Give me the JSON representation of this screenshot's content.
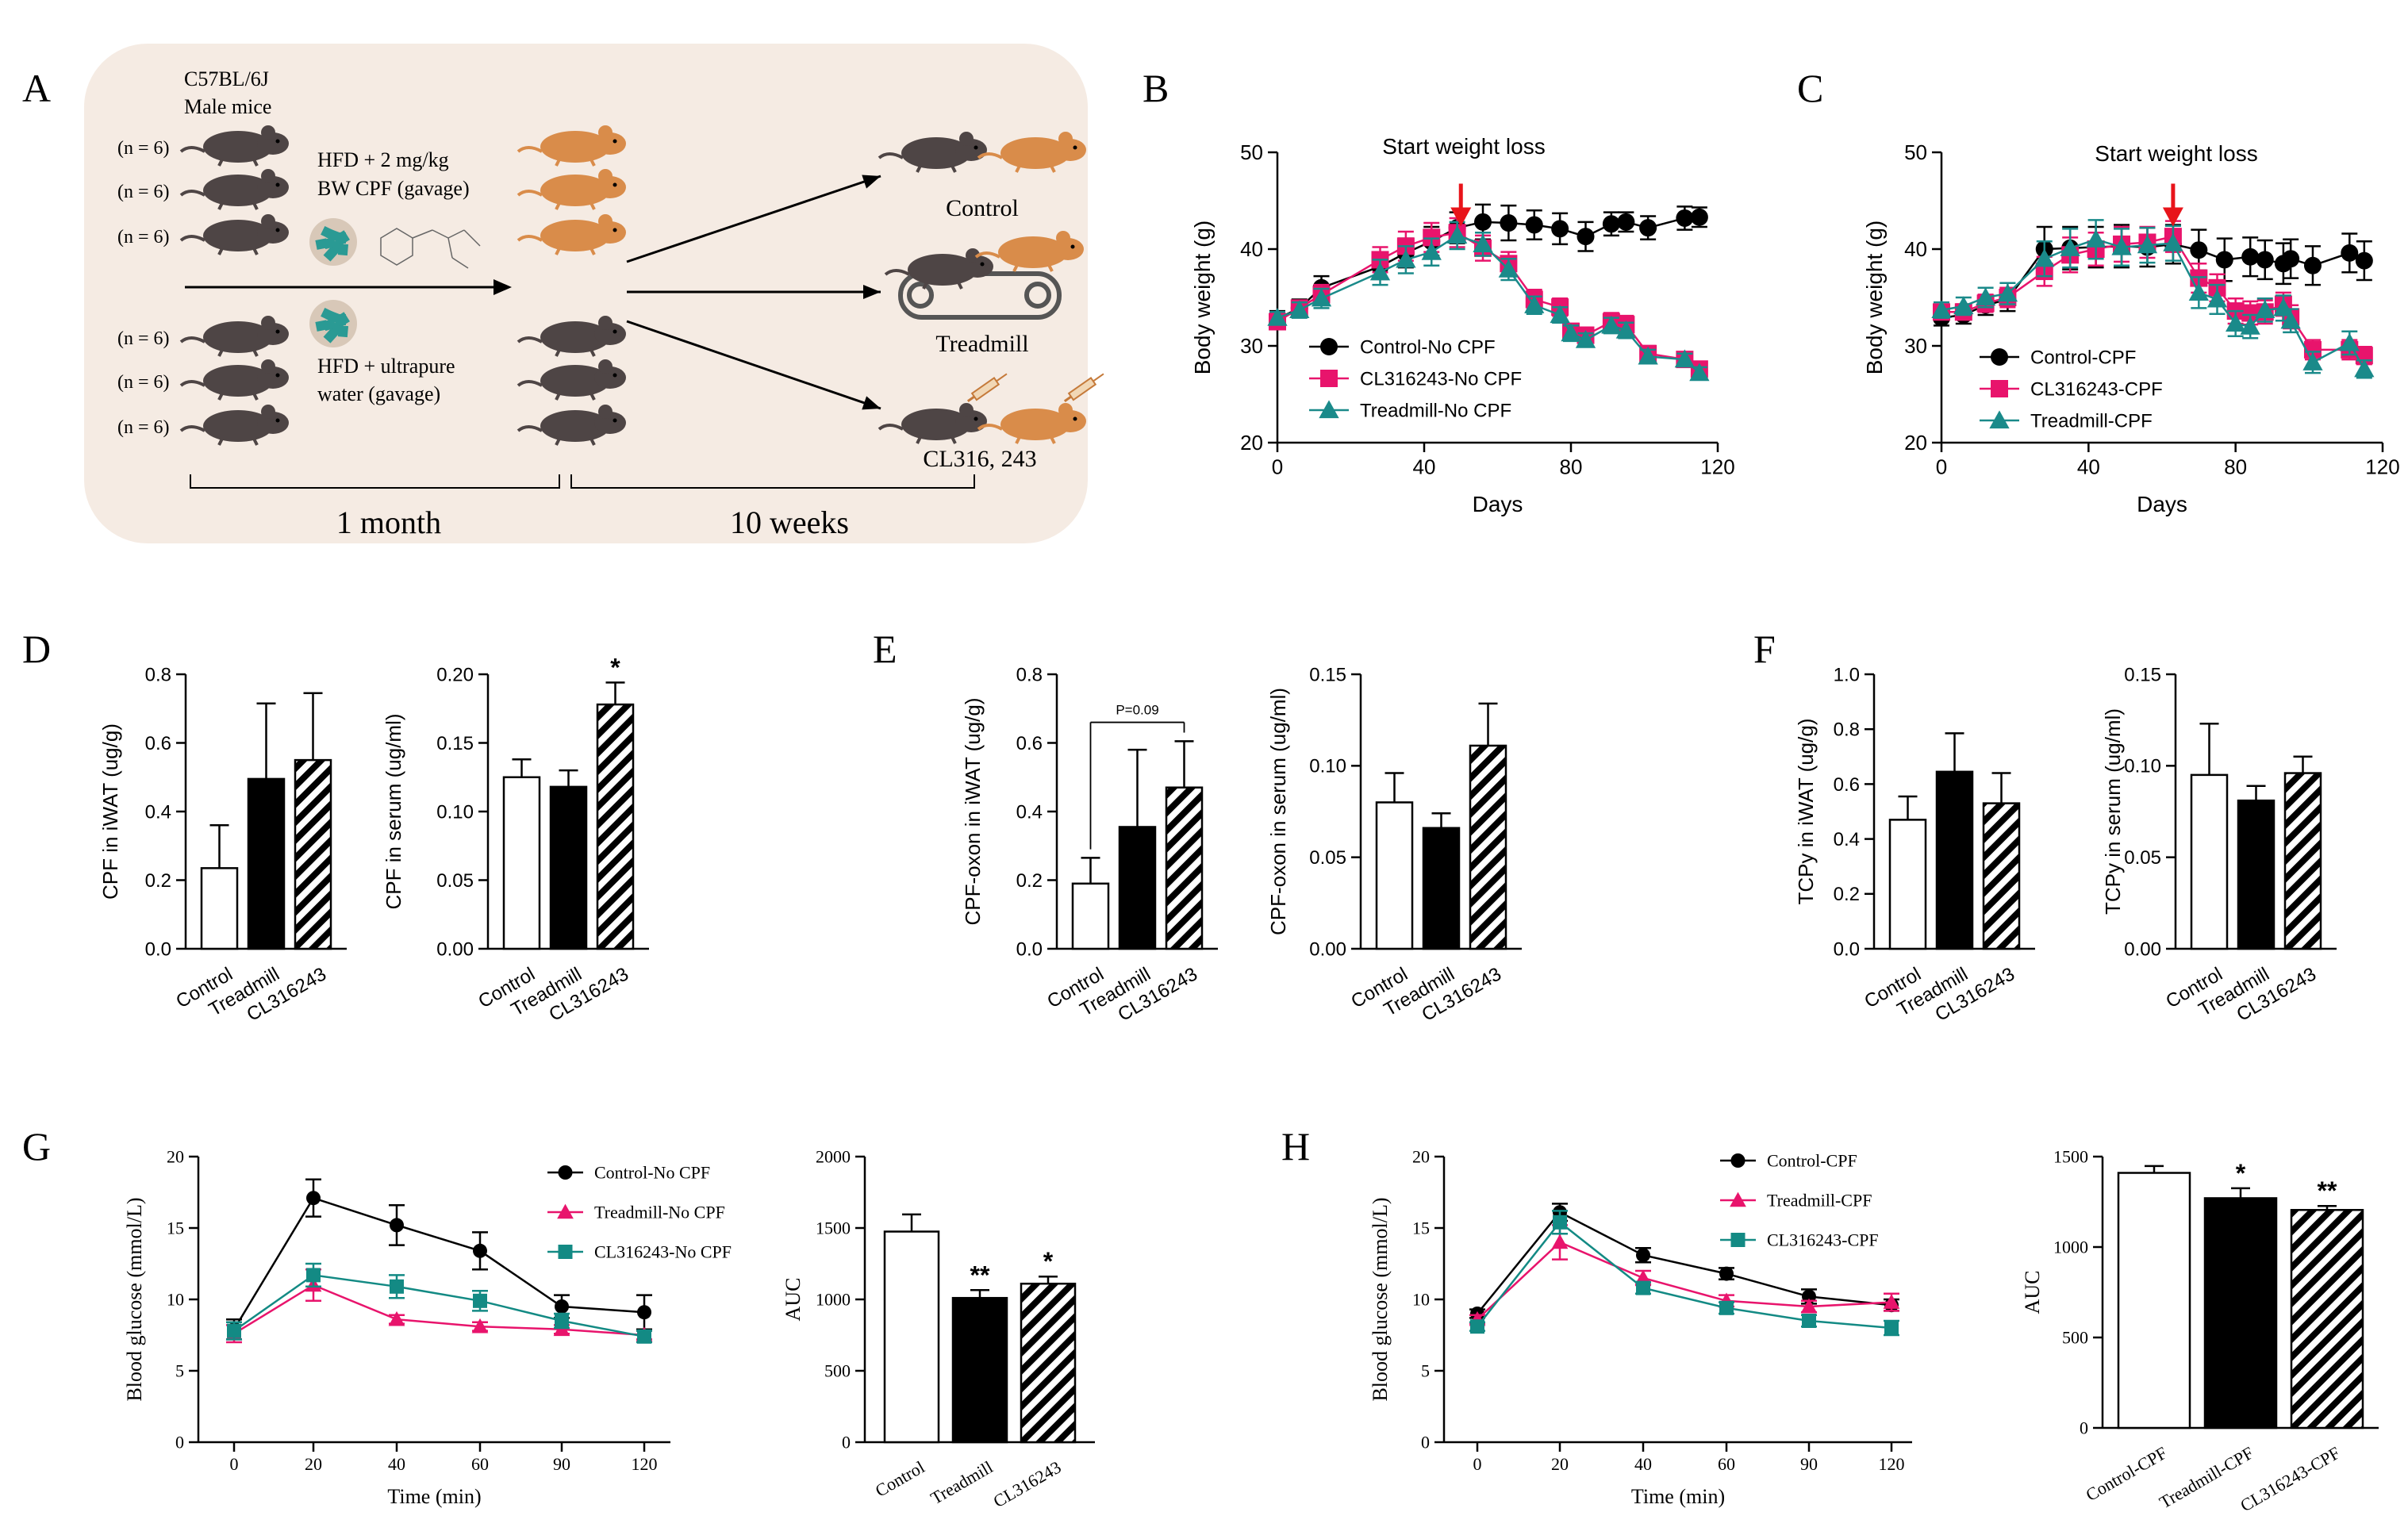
{
  "colors": {
    "black": "#000000",
    "control": "#000000",
    "cl": "#e8146c",
    "treadmill": "#1a8a8a",
    "treadmill_g": "#e8146c",
    "cl_g": "#138a84",
    "panel_bg": "#f5ebe3",
    "mouse_dark": "#4e4545",
    "mouse_orange": "#d98c4a",
    "arrow_red": "#e8141a",
    "cpf_particles": "#2a9a94"
  },
  "panelA": {
    "letter": "A",
    "strain": "C57BL/6J",
    "sex": "Male mice",
    "n_labels": [
      "(n = 6)",
      "(n = 6)",
      "(n = 6)",
      "(n = 6)",
      "(n = 6)",
      "(n = 6)"
    ],
    "hfd_cpf_line1": "HFD  +  2 mg/kg",
    "hfd_cpf_line2": "BW CPF (gavage)",
    "hfd_water_line1": "HFD  +  ultrapure",
    "hfd_water_line2": "water (gavage)",
    "group_control": "Control",
    "group_treadmill": "Treadmill",
    "group_cl": "CL316, 243",
    "period1": "1 month",
    "period2": "10 weeks",
    "icons": [
      "mouse-icon",
      "cpf-pellet-icon",
      "cpf-structure-icon",
      "treadmill-icon",
      "syringe-icon"
    ]
  },
  "chart_data": [
    {
      "id": "B",
      "type": "line",
      "letter": "B",
      "xlabel": "Days",
      "ylabel": "Body weight (g)",
      "xlim": [
        0,
        120
      ],
      "ylim": [
        20,
        50
      ],
      "xticks": [
        "0",
        "40",
        "80",
        "120"
      ],
      "yticks": [
        "20",
        "30",
        "40",
        "50"
      ],
      "annotation": "Start weight loss",
      "arrow_x": 50,
      "arrow_y": 42.5,
      "series": [
        {
          "name": "Control-No CPF",
          "marker": "circle",
          "color": "#000000",
          "x": [
            0,
            6,
            12,
            28,
            35,
            42,
            49,
            56,
            63,
            70,
            77,
            84,
            91,
            95,
            101,
            111,
            115
          ],
          "y": [
            32.8,
            33.9,
            36.0,
            38.2,
            39.6,
            40.8,
            42.2,
            42.8,
            42.7,
            42.5,
            42.1,
            41.3,
            42.6,
            42.8,
            42.2,
            43.2,
            43.3
          ],
          "err": [
            0.8,
            0.9,
            1.2,
            1.3,
            1.5,
            1.5,
            1.6,
            1.8,
            1.8,
            1.5,
            1.6,
            1.5,
            1.2,
            1.0,
            1.2,
            1.2,
            1.0
          ]
        },
        {
          "name": "CL316243-No CPF",
          "marker": "square",
          "color": "#e8146c",
          "x": [
            0,
            6,
            12,
            28,
            35,
            42,
            49,
            56,
            63,
            70,
            77,
            80,
            84,
            91,
            95,
            101,
            111,
            115
          ],
          "y": [
            32.5,
            33.9,
            35.3,
            38.9,
            40.3,
            41.2,
            41.7,
            40.1,
            38.5,
            34.8,
            34.0,
            31.5,
            31.1,
            32.5,
            32.2,
            29.2,
            28.6,
            27.6
          ],
          "err": [
            0.6,
            0.8,
            1.0,
            1.3,
            1.5,
            1.5,
            1.5,
            1.3,
            1.2,
            1.0,
            0.9,
            0.8,
            0.8,
            0.9,
            0.9,
            0.8,
            0.7,
            0.6
          ]
        },
        {
          "name": "Treadmill-No CPF",
          "marker": "triangle",
          "color": "#1a8a8a",
          "x": [
            0,
            6,
            12,
            28,
            35,
            42,
            49,
            56,
            63,
            70,
            77,
            80,
            84,
            91,
            95,
            101,
            111,
            115
          ],
          "y": [
            32.9,
            33.7,
            34.9,
            37.6,
            38.9,
            39.7,
            41.4,
            40.5,
            37.9,
            34.2,
            33.2,
            31.3,
            30.6,
            32.1,
            31.6,
            28.9,
            28.6,
            27.2
          ],
          "err": [
            0.6,
            0.8,
            1.0,
            1.3,
            1.4,
            1.4,
            1.4,
            1.2,
            1.1,
            0.9,
            0.8,
            0.8,
            0.7,
            0.8,
            0.8,
            0.7,
            0.6,
            0.6
          ]
        }
      ]
    },
    {
      "id": "C",
      "type": "line",
      "letter": "C",
      "xlabel": "Days",
      "ylabel": "Body weight (g)",
      "xlim": [
        0,
        120
      ],
      "ylim": [
        20,
        50
      ],
      "xticks": [
        "0",
        "40",
        "80",
        "120"
      ],
      "yticks": [
        "20",
        "30",
        "40",
        "50"
      ],
      "annotation": "Start weight loss",
      "arrow_x": 63,
      "arrow_y": 42.5,
      "series": [
        {
          "name": "Control-CPF",
          "marker": "circle",
          "color": "#000000",
          "x": [
            0,
            6,
            12,
            18,
            28,
            35,
            42,
            49,
            56,
            63,
            70,
            77,
            84,
            88,
            93,
            95,
            101,
            111,
            115
          ],
          "y": [
            32.9,
            33.2,
            34.2,
            34.8,
            40.0,
            40.1,
            40.2,
            40.3,
            40.2,
            40.5,
            39.9,
            38.9,
            39.2,
            38.9,
            38.5,
            39.0,
            38.3,
            39.6,
            38.8
          ],
          "err": [
            0.8,
            0.9,
            1.0,
            1.2,
            2.3,
            2.2,
            2.1,
            2.2,
            2.0,
            2.0,
            2.1,
            2.2,
            2.0,
            2.0,
            2.1,
            2.0,
            2.0,
            2.0,
            2.0
          ]
        },
        {
          "name": "CL316243-CPF",
          "marker": "square",
          "color": "#e8146c",
          "x": [
            0,
            6,
            12,
            18,
            28,
            35,
            42,
            49,
            56,
            63,
            70,
            75,
            80,
            84,
            88,
            93,
            95,
            101,
            111,
            115
          ],
          "y": [
            33.5,
            33.5,
            34.4,
            35.0,
            37.7,
            39.4,
            40.0,
            40.5,
            40.7,
            41.3,
            37.0,
            36.0,
            33.6,
            33.4,
            33.5,
            34.3,
            33.0,
            29.6,
            29.6,
            29.0
          ],
          "err": [
            0.7,
            0.8,
            0.9,
            1.0,
            1.5,
            1.8,
            1.7,
            1.8,
            1.6,
            1.6,
            1.5,
            1.4,
            1.3,
            1.2,
            1.2,
            1.2,
            1.2,
            1.0,
            1.0,
            0.9
          ]
        },
        {
          "name": "Treadmill-CPF",
          "marker": "triangle",
          "color": "#1a8a8a",
          "x": [
            0,
            6,
            12,
            18,
            28,
            35,
            42,
            49,
            56,
            63,
            70,
            75,
            80,
            84,
            88,
            93,
            95,
            101,
            111,
            115
          ],
          "y": [
            33.7,
            34.1,
            35.0,
            35.4,
            39.0,
            40.1,
            41.0,
            40.2,
            40.4,
            40.6,
            35.5,
            34.8,
            32.3,
            32.0,
            33.7,
            33.9,
            32.6,
            28.3,
            30.3,
            27.6
          ],
          "err": [
            0.8,
            0.9,
            1.0,
            1.1,
            1.8,
            2.0,
            2.0,
            1.9,
            1.8,
            1.8,
            1.6,
            1.5,
            1.3,
            1.2,
            1.2,
            1.3,
            1.2,
            1.1,
            1.2,
            0.9
          ]
        }
      ]
    },
    {
      "id": "D1",
      "type": "bar",
      "letter": "D",
      "categories": [
        "Control",
        "Treadmill",
        "CL316243"
      ],
      "values": [
        0.235,
        0.495,
        0.55
      ],
      "err": [
        0.125,
        0.22,
        0.195
      ],
      "ylabel": "CPF in iWAT (ug/g)",
      "ylim": [
        0,
        0.8
      ],
      "yticks": [
        "0.0",
        "0.2",
        "0.4",
        "0.6",
        "0.8"
      ],
      "sig": [
        "",
        "",
        ""
      ]
    },
    {
      "id": "D2",
      "type": "bar",
      "categories": [
        "Control",
        "Treadmill",
        "CL316243"
      ],
      "values": [
        0.125,
        0.118,
        0.178
      ],
      "err": [
        0.013,
        0.012,
        0.016
      ],
      "ylabel": "CPF in serum (ug/ml)",
      "ylim": [
        0,
        0.2
      ],
      "yticks": [
        "0.00",
        "0.05",
        "0.10",
        "0.15",
        "0.20"
      ],
      "sig": [
        "",
        "",
        "*"
      ]
    },
    {
      "id": "E1",
      "type": "bar",
      "letter": "E",
      "categories": [
        "Control",
        "Treadmill",
        "CL316243"
      ],
      "values": [
        0.19,
        0.355,
        0.47
      ],
      "err": [
        0.075,
        0.225,
        0.135
      ],
      "ylabel": "CPF-oxon in iWAT (ug/g)",
      "ylim": [
        0,
        0.8
      ],
      "yticks": [
        "0.0",
        "0.2",
        "0.4",
        "0.6",
        "0.8"
      ],
      "sig": [
        "",
        "",
        ""
      ],
      "bracket": "P=0.09"
    },
    {
      "id": "E2",
      "type": "bar",
      "categories": [
        "Control",
        "Treadmill",
        "CL316243"
      ],
      "values": [
        0.08,
        0.066,
        0.111
      ],
      "err": [
        0.016,
        0.008,
        0.023
      ],
      "ylabel": "CPF-oxon in serum (ug/ml)",
      "ylim": [
        0,
        0.15
      ],
      "yticks": [
        "0.00",
        "0.05",
        "0.10",
        "0.15"
      ],
      "sig": [
        "",
        "",
        ""
      ]
    },
    {
      "id": "F1",
      "type": "bar",
      "letter": "F",
      "categories": [
        "Control",
        "Treadmill",
        "CL316243"
      ],
      "values": [
        0.47,
        0.645,
        0.53
      ],
      "err": [
        0.085,
        0.14,
        0.11
      ],
      "ylabel": "TCPy in iWAT (ug/g)",
      "ylim": [
        0,
        1.0
      ],
      "yticks": [
        "0.0",
        "0.2",
        "0.4",
        "0.6",
        "0.8",
        "1.0"
      ],
      "sig": [
        "",
        "",
        ""
      ]
    },
    {
      "id": "F2",
      "type": "bar",
      "categories": [
        "Control",
        "Treadmill",
        "CL316243"
      ],
      "values": [
        0.095,
        0.081,
        0.096
      ],
      "err": [
        0.028,
        0.008,
        0.009
      ],
      "ylabel": "TCPy in serum (ug/ml)",
      "ylim": [
        0,
        0.15
      ],
      "yticks": [
        "0.00",
        "0.05",
        "0.10",
        "0.15"
      ],
      "sig": [
        "",
        "",
        ""
      ]
    },
    {
      "id": "G1",
      "type": "line",
      "letter": "G",
      "xlabel": "Time (min)",
      "ylabel": "Blood glucose (mmol/L)",
      "xcats": [
        "0",
        "20",
        "40",
        "60",
        "90",
        "120"
      ],
      "ylim": [
        0,
        20
      ],
      "yticks": [
        "0",
        "5",
        "10",
        "15",
        "20"
      ],
      "series": [
        {
          "name": "Control-No CPF",
          "marker": "circle",
          "color": "#000000",
          "y": [
            7.9,
            17.1,
            15.2,
            13.4,
            9.5,
            9.1
          ],
          "err": [
            0.7,
            1.3,
            1.4,
            1.3,
            0.8,
            1.2
          ]
        },
        {
          "name": "Treadmill-No CPF",
          "marker": "triangle",
          "color": "#e8146c",
          "y": [
            7.6,
            11.0,
            8.6,
            8.1,
            7.9,
            7.5
          ],
          "err": [
            0.6,
            1.1,
            0.3,
            0.3,
            0.3,
            0.3
          ]
        },
        {
          "name": "CL316243-No CPF",
          "marker": "square",
          "color": "#138a84",
          "y": [
            7.8,
            11.7,
            10.9,
            9.9,
            8.5,
            7.4
          ],
          "err": [
            0.6,
            0.8,
            0.8,
            0.7,
            0.5,
            0.4
          ]
        }
      ]
    },
    {
      "id": "G2",
      "type": "bar",
      "categories": [
        "Control",
        "Treadmill",
        "CL316243"
      ],
      "values": [
        1475,
        1010,
        1110
      ],
      "err": [
        120,
        55,
        50
      ],
      "ylabel": "AUC",
      "ylim": [
        0,
        2000
      ],
      "yticks": [
        "0",
        "500",
        "1000",
        "1500",
        "2000"
      ],
      "sig": [
        "",
        "**",
        "*"
      ]
    },
    {
      "id": "H1",
      "type": "line",
      "letter": "H",
      "xlabel": "Time (min)",
      "ylabel": "Blood glucose (mmol/L)",
      "xcats": [
        "0",
        "20",
        "40",
        "60",
        "90",
        "120"
      ],
      "ylim": [
        0,
        20
      ],
      "yticks": [
        "0",
        "5",
        "10",
        "15",
        "20"
      ],
      "series": [
        {
          "name": "Control-CPF",
          "marker": "circle",
          "color": "#000000",
          "y": [
            9.0,
            16.1,
            13.1,
            11.8,
            10.2,
            9.6
          ],
          "err": [
            0.3,
            0.6,
            0.5,
            0.4,
            0.5,
            0.4
          ]
        },
        {
          "name": "Treadmill-CPF",
          "marker": "triangle",
          "color": "#e8146c",
          "y": [
            8.6,
            14.0,
            11.5,
            9.9,
            9.5,
            9.8
          ],
          "err": [
            0.3,
            1.2,
            0.5,
            0.4,
            0.4,
            0.6
          ]
        },
        {
          "name": "CL316243-CPF",
          "marker": "square",
          "color": "#138a84",
          "y": [
            8.1,
            15.4,
            10.8,
            9.4,
            8.5,
            8.0
          ],
          "err": [
            0.3,
            0.8,
            0.4,
            0.4,
            0.4,
            0.5
          ]
        }
      ]
    },
    {
      "id": "H2",
      "type": "bar",
      "categories": [
        "Control-CPF",
        "Treadmill-CPF",
        "CL316243-CPF"
      ],
      "values": [
        1410,
        1270,
        1205
      ],
      "err": [
        38,
        55,
        22
      ],
      "ylabel": "AUC",
      "ylim": [
        0,
        1500
      ],
      "yticks": [
        "0",
        "500",
        "1000",
        "1500"
      ],
      "sig": [
        "",
        "*",
        "**"
      ]
    }
  ]
}
